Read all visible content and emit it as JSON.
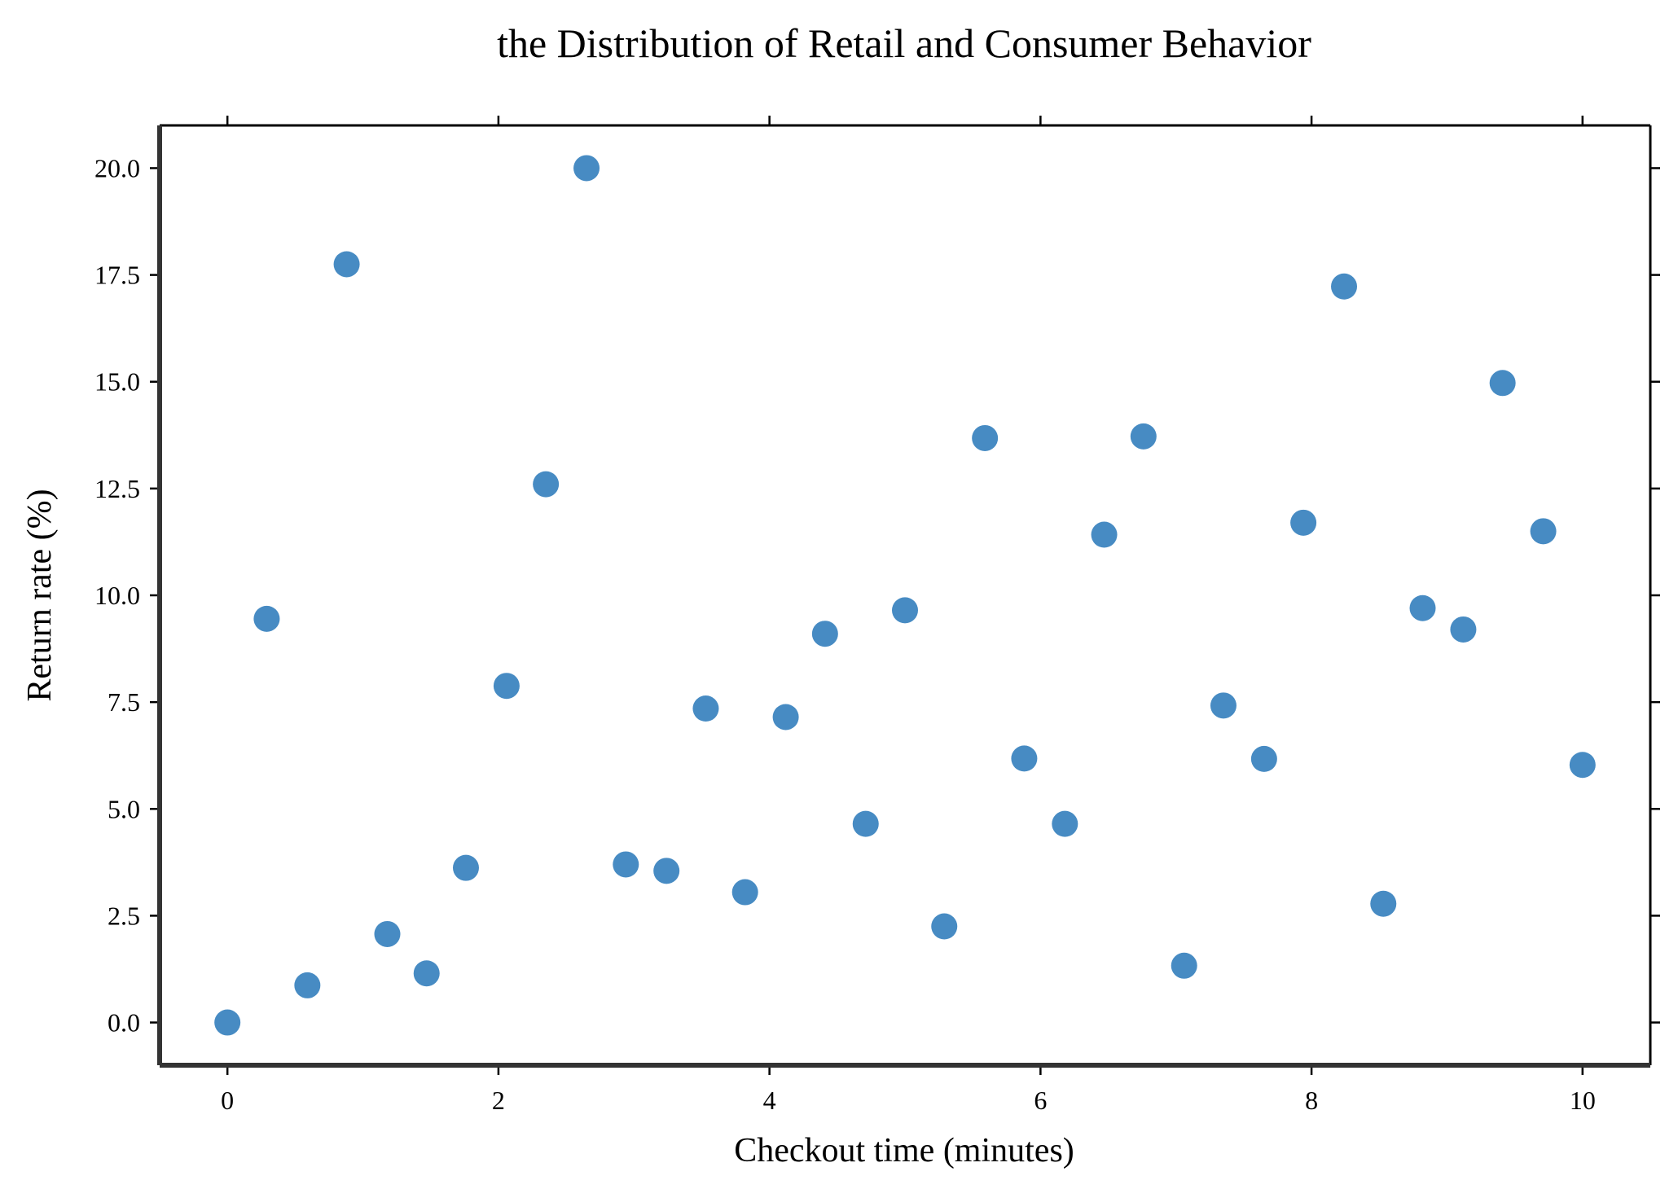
{
  "chart_data": {
    "type": "scatter",
    "title": "the Distribution of Retail and Consumer Behavior",
    "xlabel": "Checkout time (minutes)",
    "ylabel": "Return rate (%)",
    "xlim": [
      -0.5,
      10.5
    ],
    "ylim": [
      -1.0,
      21.0
    ],
    "xticks": [
      0,
      2,
      4,
      6,
      8,
      10
    ],
    "yticks": [
      0.0,
      2.5,
      5.0,
      7.5,
      10.0,
      12.5,
      15.0,
      17.5,
      20.0
    ],
    "xtick_labels": [
      "0",
      "2",
      "4",
      "6",
      "8",
      "10"
    ],
    "ytick_labels": [
      "0.0",
      "2.5",
      "5.0",
      "7.5",
      "10.0",
      "12.5",
      "15.0",
      "17.5",
      "20.0"
    ],
    "grid": false,
    "point_color": "#3d85c0",
    "points": [
      {
        "x": 0.0,
        "y": 0.0
      },
      {
        "x": 0.29,
        "y": 9.45
      },
      {
        "x": 0.59,
        "y": 0.87
      },
      {
        "x": 0.88,
        "y": 17.75
      },
      {
        "x": 1.18,
        "y": 2.07
      },
      {
        "x": 1.47,
        "y": 1.15
      },
      {
        "x": 1.76,
        "y": 3.62
      },
      {
        "x": 2.06,
        "y": 7.88
      },
      {
        "x": 2.35,
        "y": 12.6
      },
      {
        "x": 2.65,
        "y": 20.0
      },
      {
        "x": 2.94,
        "y": 3.7
      },
      {
        "x": 3.24,
        "y": 3.55
      },
      {
        "x": 3.53,
        "y": 7.35
      },
      {
        "x": 3.82,
        "y": 3.05
      },
      {
        "x": 4.12,
        "y": 7.15
      },
      {
        "x": 4.41,
        "y": 9.1
      },
      {
        "x": 4.71,
        "y": 4.65
      },
      {
        "x": 5.0,
        "y": 9.65
      },
      {
        "x": 5.29,
        "y": 2.25
      },
      {
        "x": 5.59,
        "y": 13.68
      },
      {
        "x": 5.88,
        "y": 6.18
      },
      {
        "x": 6.18,
        "y": 4.65
      },
      {
        "x": 6.47,
        "y": 11.42
      },
      {
        "x": 6.76,
        "y": 13.72
      },
      {
        "x": 7.06,
        "y": 1.33
      },
      {
        "x": 7.35,
        "y": 7.42
      },
      {
        "x": 7.65,
        "y": 6.17
      },
      {
        "x": 7.94,
        "y": 11.7
      },
      {
        "x": 8.24,
        "y": 17.23
      },
      {
        "x": 8.53,
        "y": 2.78
      },
      {
        "x": 8.82,
        "y": 9.7
      },
      {
        "x": 9.12,
        "y": 9.2
      },
      {
        "x": 9.41,
        "y": 14.97
      },
      {
        "x": 9.71,
        "y": 11.5
      },
      {
        "x": 10.0,
        "y": 6.03
      }
    ]
  }
}
